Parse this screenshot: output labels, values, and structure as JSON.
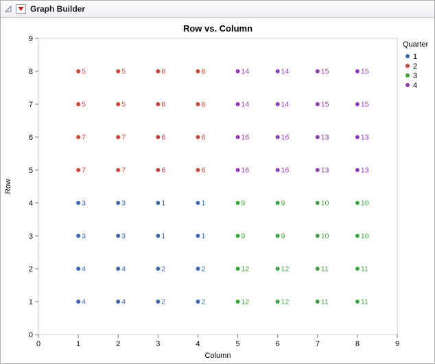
{
  "header": {
    "title": "Graph Builder"
  },
  "chart_data": {
    "type": "scatter",
    "title": "Row vs. Column",
    "xlabel": "Column",
    "ylabel": "Row",
    "xlim": [
      0,
      9
    ],
    "ylim": [
      0,
      9
    ],
    "xticks": [
      0,
      1,
      2,
      3,
      4,
      5,
      6,
      7,
      8,
      9
    ],
    "yticks": [
      0,
      1,
      2,
      3,
      4,
      5,
      6,
      7,
      8,
      9
    ],
    "grid": false,
    "legend": {
      "title": "Quarter",
      "position": "right",
      "entries": [
        {
          "label": "1",
          "color": "#3A66B3"
        },
        {
          "label": "2",
          "color": "#CC4437"
        },
        {
          "label": "3",
          "color": "#3DA33D"
        },
        {
          "label": "4",
          "color": "#9438B8"
        }
      ]
    },
    "series": [
      {
        "name": "Quarter 1",
        "color": "#3A66B3",
        "points": [
          {
            "x": 1,
            "y": 1,
            "label": "4"
          },
          {
            "x": 2,
            "y": 1,
            "label": "4"
          },
          {
            "x": 3,
            "y": 1,
            "label": "2"
          },
          {
            "x": 4,
            "y": 1,
            "label": "2"
          },
          {
            "x": 1,
            "y": 2,
            "label": "4"
          },
          {
            "x": 2,
            "y": 2,
            "label": "4"
          },
          {
            "x": 3,
            "y": 2,
            "label": "2"
          },
          {
            "x": 4,
            "y": 2,
            "label": "2"
          },
          {
            "x": 1,
            "y": 3,
            "label": "3"
          },
          {
            "x": 2,
            "y": 3,
            "label": "3"
          },
          {
            "x": 3,
            "y": 3,
            "label": "1"
          },
          {
            "x": 4,
            "y": 3,
            "label": "1"
          },
          {
            "x": 1,
            "y": 4,
            "label": "3"
          },
          {
            "x": 2,
            "y": 4,
            "label": "3"
          },
          {
            "x": 3,
            "y": 4,
            "label": "1"
          },
          {
            "x": 4,
            "y": 4,
            "label": "1"
          }
        ]
      },
      {
        "name": "Quarter 2",
        "color": "#CC4437",
        "points": [
          {
            "x": 1,
            "y": 5,
            "label": "7"
          },
          {
            "x": 2,
            "y": 5,
            "label": "7"
          },
          {
            "x": 3,
            "y": 5,
            "label": "6"
          },
          {
            "x": 4,
            "y": 5,
            "label": "6"
          },
          {
            "x": 1,
            "y": 6,
            "label": "7"
          },
          {
            "x": 2,
            "y": 6,
            "label": "7"
          },
          {
            "x": 3,
            "y": 6,
            "label": "6"
          },
          {
            "x": 4,
            "y": 6,
            "label": "6"
          },
          {
            "x": 1,
            "y": 7,
            "label": "5"
          },
          {
            "x": 2,
            "y": 7,
            "label": "5"
          },
          {
            "x": 3,
            "y": 7,
            "label": "8"
          },
          {
            "x": 4,
            "y": 7,
            "label": "8"
          },
          {
            "x": 1,
            "y": 8,
            "label": "5"
          },
          {
            "x": 2,
            "y": 8,
            "label": "5"
          },
          {
            "x": 3,
            "y": 8,
            "label": "8"
          },
          {
            "x": 4,
            "y": 8,
            "label": "8"
          }
        ]
      },
      {
        "name": "Quarter 3",
        "color": "#3DA33D",
        "points": [
          {
            "x": 5,
            "y": 1,
            "label": "12"
          },
          {
            "x": 6,
            "y": 1,
            "label": "12"
          },
          {
            "x": 7,
            "y": 1,
            "label": "11"
          },
          {
            "x": 8,
            "y": 1,
            "label": "11"
          },
          {
            "x": 5,
            "y": 2,
            "label": "12"
          },
          {
            "x": 6,
            "y": 2,
            "label": "12"
          },
          {
            "x": 7,
            "y": 2,
            "label": "11"
          },
          {
            "x": 8,
            "y": 2,
            "label": "11"
          },
          {
            "x": 5,
            "y": 3,
            "label": "9"
          },
          {
            "x": 6,
            "y": 3,
            "label": "9"
          },
          {
            "x": 7,
            "y": 3,
            "label": "10"
          },
          {
            "x": 8,
            "y": 3,
            "label": "10"
          },
          {
            "x": 5,
            "y": 4,
            "label": "9"
          },
          {
            "x": 6,
            "y": 4,
            "label": "9"
          },
          {
            "x": 7,
            "y": 4,
            "label": "10"
          },
          {
            "x": 8,
            "y": 4,
            "label": "10"
          }
        ]
      },
      {
        "name": "Quarter 4",
        "color": "#9438B8",
        "points": [
          {
            "x": 5,
            "y": 5,
            "label": "16"
          },
          {
            "x": 6,
            "y": 5,
            "label": "16"
          },
          {
            "x": 7,
            "y": 5,
            "label": "13"
          },
          {
            "x": 8,
            "y": 5,
            "label": "13"
          },
          {
            "x": 5,
            "y": 6,
            "label": "16"
          },
          {
            "x": 6,
            "y": 6,
            "label": "16"
          },
          {
            "x": 7,
            "y": 6,
            "label": "13"
          },
          {
            "x": 8,
            "y": 6,
            "label": "13"
          },
          {
            "x": 5,
            "y": 7,
            "label": "14"
          },
          {
            "x": 6,
            "y": 7,
            "label": "14"
          },
          {
            "x": 7,
            "y": 7,
            "label": "15"
          },
          {
            "x": 8,
            "y": 7,
            "label": "15"
          },
          {
            "x": 5,
            "y": 8,
            "label": "14"
          },
          {
            "x": 6,
            "y": 8,
            "label": "14"
          },
          {
            "x": 7,
            "y": 8,
            "label": "15"
          },
          {
            "x": 8,
            "y": 8,
            "label": "15"
          }
        ]
      }
    ]
  }
}
